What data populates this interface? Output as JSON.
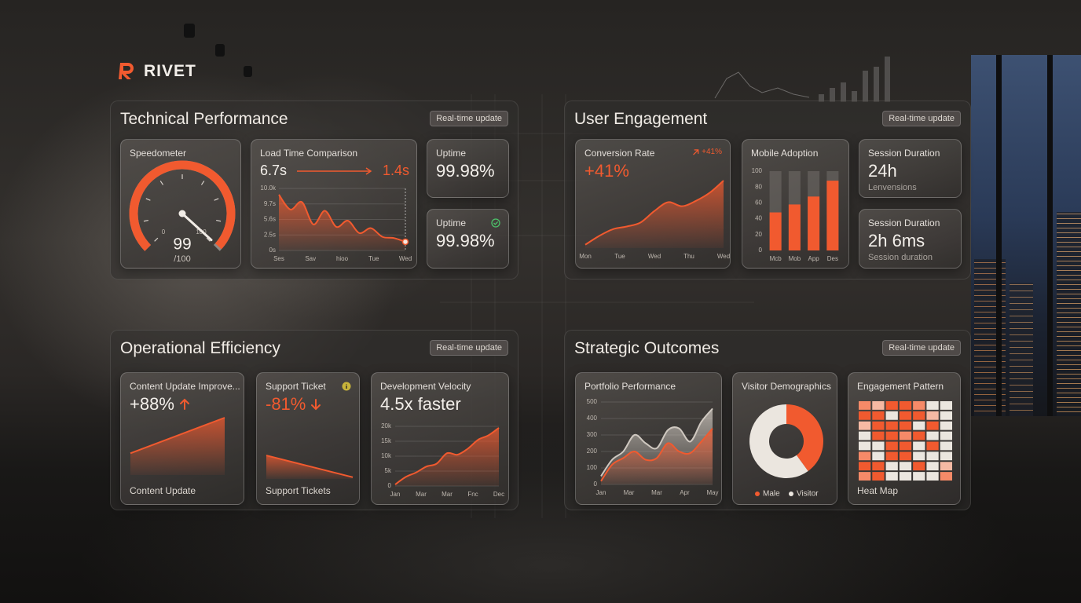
{
  "brand": "RIVET",
  "panels": [
    {
      "title": "Technical Performance",
      "badge": "Real-time update",
      "cards": [
        {
          "title": "Speedometer",
          "chart": {
            "type": "gauge",
            "value": 99,
            "ylim": [
              0,
              100
            ],
            "ticks": [
              0,
              100
            ],
            "caption": "/100",
            "color": "#f15a2f"
          }
        },
        {
          "title": "Load Time Comparison",
          "from": "6.7s",
          "to": "1.4s",
          "chart": {
            "type": "area",
            "ylim": [
              0,
              10
            ],
            "y_labels": [
              "10.0k",
              "9.7s",
              "5.6s",
              "2.5s",
              "0s"
            ],
            "x_labels": [
              "Ses",
              "Sav",
              "hioo",
              "Tue",
              "Wed"
            ],
            "values": [
              9.0,
              6.6,
              7.8,
              4.2,
              6.4,
              3.8,
              4.8,
              2.8,
              3.6,
              2.2,
              2.0,
              1.4
            ],
            "color": "#f15a2f",
            "grid": true,
            "end_marker": true
          }
        },
        {
          "title": "Uptime",
          "value": "99.98%"
        },
        {
          "title": "Uptime",
          "value": "99.98%",
          "icon": "check"
        }
      ]
    },
    {
      "title": "User Engagement",
      "badge": "Real-time update",
      "cards": [
        {
          "title": "Conversion Rate",
          "delta": "+41%",
          "value": "+41%",
          "value_color": "#f15a2f",
          "chart": {
            "type": "area",
            "ylim": [
              0,
              100
            ],
            "x_labels": [
              "Mon",
              "Tue",
              "Wed",
              "Thu",
              "Wed"
            ],
            "values": [
              5,
              18,
              28,
              32,
              38,
              55,
              68,
              62,
              70,
              82,
              100
            ],
            "color": "#f15a2f"
          }
        },
        {
          "title": "Mobile Adoption",
          "chart": {
            "type": "bar",
            "ylim": [
              0,
              100
            ],
            "yticks": [
              0,
              20,
              40,
              60,
              80,
              100
            ],
            "categories": [
              "Mcb",
              "Mob",
              "App",
              "Des"
            ],
            "values": [
              48,
              58,
              68,
              88
            ],
            "color": "#f15a2f",
            "grid": false
          }
        },
        {
          "title": "Session Duration",
          "value": "24h",
          "sub": "Lenvensions"
        },
        {
          "title": "Session Duration",
          "value": "2h 6ms",
          "sub": "Session duration"
        }
      ]
    },
    {
      "title": "Operational Efficiency",
      "badge": "Real-time update",
      "cards": [
        {
          "title": "Content Update Improve...",
          "value": "+88%",
          "trend": "up",
          "footer": "Content Update",
          "chart": {
            "type": "area",
            "ylim": [
              0,
              100
            ],
            "values": [
              38,
              100
            ],
            "color": "#f15a2f"
          }
        },
        {
          "title": "Support Ticket",
          "value": "-81%",
          "value_color": "#f15a2f",
          "trend": "down",
          "icon": "info",
          "footer": "Support Tickets",
          "chart": {
            "type": "area",
            "ylim": [
              0,
              100
            ],
            "values": [
              41,
              3
            ],
            "color": "#f15a2f"
          }
        },
        {
          "title": "Development Velocity",
          "value": "4.5x faster",
          "chart": {
            "type": "area",
            "ylim": [
              0,
              20000
            ],
            "yticks": [
              0,
              {
                "value": 5000,
                "label": "5k"
              },
              {
                "value": 10000,
                "label": "10k"
              },
              {
                "value": 15000,
                "label": "15k"
              },
              {
                "value": 20000,
                "label": "20k"
              }
            ],
            "x_labels": [
              "Jan",
              "Mar",
              "Mar",
              "Fnc",
              "Dec"
            ],
            "values": [
              500,
              3000,
              4500,
              6500,
              7500,
              11000,
              10500,
              12500,
              15500,
              17000,
              19500
            ],
            "color": "#f15a2f",
            "grid": true
          }
        }
      ]
    },
    {
      "title": "Strategic Outcomes",
      "badge": "Real-time update",
      "cards": [
        {
          "title": "Portfolio Performance",
          "chart": {
            "type": "area",
            "ylim": [
              0,
              500
            ],
            "yticks": [
              0,
              100,
              200,
              300,
              400,
              500
            ],
            "x_labels": [
              "Jan",
              "Mar",
              "Mar",
              "Apr",
              "May"
            ],
            "series": [
              {
                "color": "#cfc8c0",
                "values": [
                  50,
                  150,
                  200,
                  300,
                  250,
                  220,
                  330,
                  340,
                  260,
                  380,
                  460
                ]
              },
              {
                "color": "#f15a2f",
                "values": [
                  20,
                  120,
                  160,
                  200,
                  150,
                  160,
                  250,
                  200,
                  190,
                  260,
                  340
                ]
              }
            ],
            "grid": true
          }
        },
        {
          "title": "Visitor Demographics",
          "chart": {
            "type": "donut",
            "values": [
              40,
              60
            ],
            "labels": [
              "Male",
              "Visitor"
            ],
            "colors": [
              "#f15a2f",
              "#ebe6df"
            ]
          }
        },
        {
          "title": "Engagement Pattern",
          "footer": "Heat Map",
          "chart": {
            "type": "heatmap",
            "colors": [
              "#ebe6df",
              "#f6b9a3",
              "#f68a68",
              "#f15a2f"
            ],
            "values": [
              [
                2,
                1,
                3,
                3,
                2,
                0,
                0
              ],
              [
                3,
                3,
                0,
                3,
                3,
                1,
                0
              ],
              [
                1,
                3,
                3,
                3,
                0,
                3,
                0
              ],
              [
                0,
                3,
                3,
                2,
                3,
                0,
                0
              ],
              [
                0,
                0,
                3,
                3,
                0,
                3,
                0
              ],
              [
                2,
                0,
                3,
                3,
                0,
                0,
                0
              ],
              [
                3,
                3,
                0,
                0,
                3,
                0,
                1
              ],
              [
                2,
                3,
                0,
                0,
                0,
                0,
                2
              ]
            ]
          }
        }
      ]
    }
  ]
}
